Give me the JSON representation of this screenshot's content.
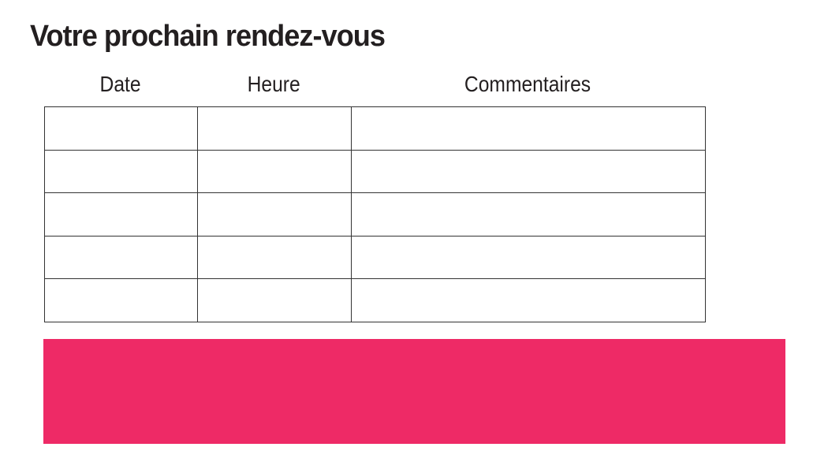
{
  "page": {
    "title": "Votre prochain rendez-vous"
  },
  "table": {
    "columns": [
      {
        "key": "date",
        "label": "Date"
      },
      {
        "key": "heure",
        "label": "Heure"
      },
      {
        "key": "commentaires",
        "label": "Commentaires"
      }
    ],
    "rows": [
      {
        "date": "",
        "heure": "",
        "commentaires": ""
      },
      {
        "date": "",
        "heure": "",
        "commentaires": ""
      },
      {
        "date": "",
        "heure": "",
        "commentaires": ""
      },
      {
        "date": "",
        "heure": "",
        "commentaires": ""
      },
      {
        "date": "",
        "heure": "",
        "commentaires": ""
      }
    ],
    "border_color": "#333333"
  },
  "footer_band": {
    "color": "#ee2a66"
  },
  "colors": {
    "accent_pink": "#ee2a66",
    "text": "#231f20",
    "background": "#ffffff"
  }
}
